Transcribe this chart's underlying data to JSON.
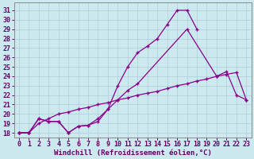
{
  "xlabel": "Windchill (Refroidissement éolien,°C)",
  "xlim": [
    -0.5,
    23.5
  ],
  "ylim": [
    17.5,
    31.8
  ],
  "xticks": [
    0,
    1,
    2,
    3,
    4,
    5,
    6,
    7,
    8,
    9,
    10,
    11,
    12,
    13,
    14,
    15,
    16,
    17,
    18,
    19,
    20,
    21,
    22,
    23
  ],
  "yticks": [
    18,
    19,
    20,
    21,
    22,
    23,
    24,
    25,
    26,
    27,
    28,
    29,
    30,
    31
  ],
  "bg_color": "#cde9f0",
  "line_color": "#880088",
  "grid_color": "#b0cdd8",
  "line1_x": [
    0,
    1,
    2,
    3,
    4,
    5,
    6,
    7,
    8,
    9,
    10,
    11,
    12,
    13,
    14,
    15,
    16,
    17,
    18
  ],
  "line1_y": [
    18,
    18,
    19.5,
    19.2,
    19.2,
    18,
    18.7,
    18.8,
    19.2,
    20.5,
    23,
    25,
    26.5,
    27.2,
    28,
    29.5,
    31,
    31,
    29
  ],
  "line2_x": [
    0,
    1,
    2,
    3,
    4,
    5,
    6,
    7,
    8,
    9,
    10,
    11,
    12,
    17,
    20,
    21,
    22,
    23
  ],
  "line2_y": [
    18,
    18,
    19.5,
    19.2,
    19.2,
    18,
    18.7,
    18.8,
    19.5,
    20.5,
    21.5,
    22.5,
    23.2,
    29,
    24,
    24.5,
    22,
    21.5
  ],
  "line3_x": [
    0,
    1,
    2,
    3,
    4,
    5,
    6,
    7,
    8,
    9,
    10,
    11,
    12,
    13,
    14,
    15,
    16,
    17,
    18,
    19,
    20,
    21,
    22,
    23
  ],
  "line3_y": [
    18,
    18,
    19,
    19.5,
    20,
    20.2,
    20.5,
    20.7,
    21,
    21.2,
    21.5,
    21.7,
    22,
    22.2,
    22.4,
    22.7,
    23,
    23.2,
    23.5,
    23.7,
    24,
    24.2,
    24.4,
    21.5
  ],
  "tick_fontsize": 6,
  "xlabel_fontsize": 6.5
}
